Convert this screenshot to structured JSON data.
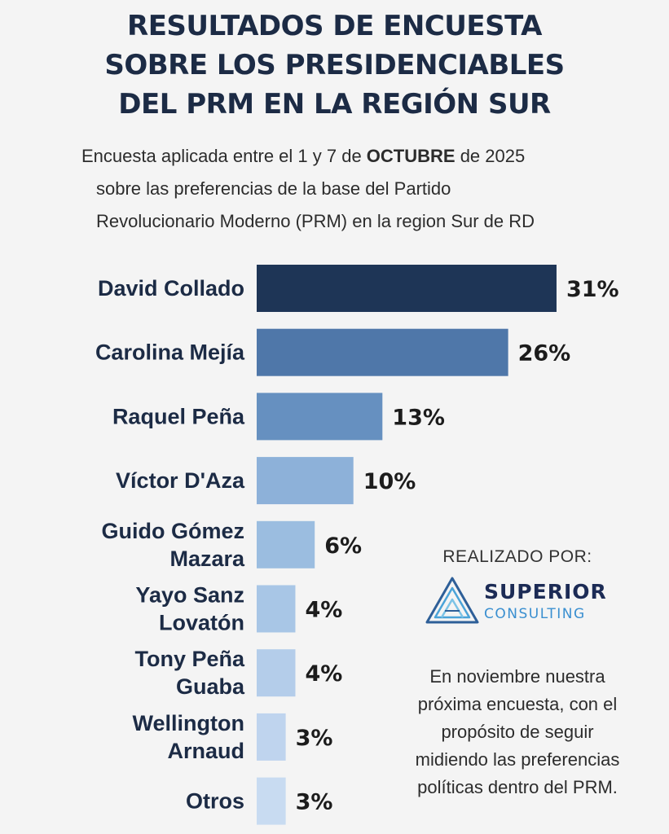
{
  "title_lines": [
    "RESULTADOS DE ENCUESTA",
    "SOBRE LOS PRESIDENCIABLES",
    "DEL PRM EN LA REGIÓN SUR"
  ],
  "subtitle": {
    "line1_pre": "Encuesta aplicada entre el 1 y 7 de ",
    "line1_bold": "OCTUBRE",
    "line1_post": " de 2025",
    "line2": "sobre las preferencias de la base del Partido",
    "line3": "Revolucionario Moderno (PRM) en la region Sur de RD"
  },
  "chart_data": {
    "type": "bar",
    "orientation": "horizontal",
    "categories": [
      [
        "David Collado"
      ],
      [
        "Carolina Mejía"
      ],
      [
        "Raquel Peña"
      ],
      [
        "Víctor D'Aza"
      ],
      [
        "Guido Gómez",
        "Mazara"
      ],
      [
        "Yayo Sanz",
        "Lovatón"
      ],
      [
        "Tony Peña",
        "Guaba"
      ],
      [
        "Wellington",
        "Arnaud"
      ],
      [
        "Otros"
      ]
    ],
    "values": [
      31,
      26,
      13,
      10,
      6,
      4,
      4,
      3,
      3
    ],
    "value_labels": [
      "31%",
      "26%",
      "13%",
      "10%",
      "6%",
      "4%",
      "4%",
      "3%",
      "3%"
    ],
    "unit": "%",
    "colors": [
      "#1e3556",
      "#4f77a9",
      "#6690c0",
      "#8db1d9",
      "#9bbde0",
      "#a8c6e6",
      "#b4cdea",
      "#bfd4ee",
      "#c8dbf1"
    ]
  },
  "credit": {
    "label": "REALIZADO POR:",
    "logo_name": "SUPERIOR",
    "logo_sub": "CONSULTING"
  },
  "note": "En noviembre nuestra próxima encuesta, con el propósito de seguir midiendo las preferencias políticas dentro del PRM."
}
